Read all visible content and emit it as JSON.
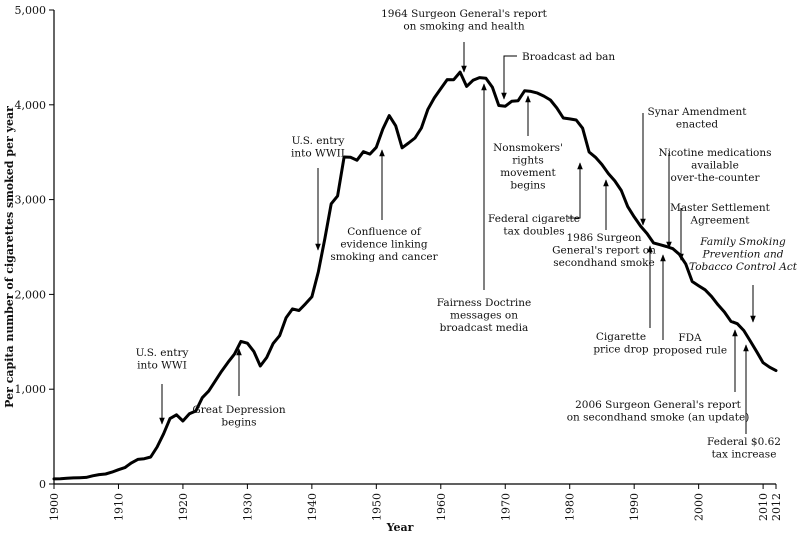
{
  "chart_data": {
    "type": "line",
    "title": "",
    "xlabel": "Year",
    "ylabel": "Per capita number of cigarettes smoked per year",
    "xlim": [
      1900,
      2012
    ],
    "ylim": [
      0,
      5000
    ],
    "x_ticks": [
      "1900",
      "1910",
      "1920",
      "1930",
      "1940",
      "1950",
      "1960",
      "1970",
      "1980",
      "1990",
      "2000",
      "2010",
      "2012"
    ],
    "y_ticks": [
      "0",
      "1,000",
      "2,000",
      "3,000",
      "4,000",
      "5,000"
    ],
    "grid": false,
    "series": [
      {
        "name": "",
        "x": [
          1900,
          1901,
          1902,
          1903,
          1904,
          1905,
          1906,
          1907,
          1908,
          1909,
          1910,
          1911,
          1912,
          1913,
          1914,
          1915,
          1916,
          1917,
          1918,
          1919,
          1920,
          1921,
          1922,
          1923,
          1924,
          1925,
          1926,
          1927,
          1928,
          1929,
          1930,
          1931,
          1932,
          1933,
          1934,
          1935,
          1936,
          1937,
          1938,
          1939,
          1940,
          1941,
          1942,
          1943,
          1944,
          1945,
          1946,
          1947,
          1948,
          1949,
          1950,
          1951,
          1952,
          1953,
          1954,
          1955,
          1956,
          1957,
          1958,
          1959,
          1960,
          1961,
          1962,
          1963,
          1964,
          1965,
          1966,
          1967,
          1968,
          1969,
          1970,
          1971,
          1972,
          1973,
          1974,
          1975,
          1976,
          1977,
          1978,
          1979,
          1980,
          1981,
          1982,
          1983,
          1984,
          1985,
          1986,
          1987,
          1988,
          1989,
          1990,
          1991,
          1992,
          1993,
          1994,
          1995,
          1996,
          1997,
          1998,
          1999,
          2000,
          2001,
          2002,
          2003,
          2004,
          2005,
          2006,
          2007,
          2008,
          2009,
          2010,
          2011,
          2012
        ],
        "y": [
          54,
          55,
          60,
          64,
          66,
          70,
          86,
          99,
          105,
          125,
          151,
          173,
          223,
          260,
          267,
          285,
          390,
          530,
          690,
          730,
          665,
          740,
          770,
          910,
          980,
          1085,
          1190,
          1285,
          1370,
          1504,
          1485,
          1399,
          1245,
          1334,
          1483,
          1564,
          1754,
          1847,
          1830,
          1900,
          1976,
          2236,
          2585,
          2956,
          3039,
          3449,
          3446,
          3416,
          3505,
          3480,
          3552,
          3744,
          3886,
          3778,
          3546,
          3597,
          3650,
          3755,
          3953,
          4073,
          4171,
          4266,
          4265,
          4345,
          4194,
          4258,
          4287,
          4280,
          4186,
          3993,
          3985,
          4037,
          4043,
          4148,
          4141,
          4123,
          4092,
          4051,
          3967,
          3861,
          3851,
          3840,
          3753,
          3502,
          3446,
          3370,
          3274,
          3197,
          3096,
          2926,
          2817,
          2720,
          2641,
          2543,
          2524,
          2505,
          2482,
          2423,
          2320,
          2136,
          2092,
          2049,
          1979,
          1890,
          1814,
          1716,
          1691,
          1619,
          1509,
          1396,
          1280,
          1232,
          1196
        ]
      }
    ],
    "annotations": [
      {
        "lines": [
          "U.S. entry",
          "into WWI"
        ],
        "year": 1917
      },
      {
        "lines": [
          "Great Depression",
          "begins"
        ],
        "year": 1929
      },
      {
        "lines": [
          "U.S. entry",
          "into WWII"
        ],
        "year": 1941
      },
      {
        "lines": [
          "Confluence of",
          "evidence linking",
          "smoking and cancer"
        ],
        "year": 1951
      },
      {
        "lines": [
          "1964 Surgeon General's report",
          "on smoking and health"
        ],
        "year": 1964
      },
      {
        "lines": [
          "Fairness Doctrine",
          "messages on",
          "broadcast media"
        ],
        "year": 1967
      },
      {
        "lines": [
          "Broadcast ad ban"
        ],
        "year": 1971
      },
      {
        "lines": [
          "Nonsmokers'",
          "rights",
          "movement",
          "begins"
        ],
        "year": 1974
      },
      {
        "lines": [
          "Federal cigarette",
          "tax doubles"
        ],
        "year": 1983
      },
      {
        "lines": [
          "1986 Surgeon",
          "General's report on",
          "secondhand smoke"
        ],
        "year": 1986
      },
      {
        "lines": [
          "Cigarette",
          "price drop"
        ],
        "year": 1993
      },
      {
        "lines": [
          "Synar Amendment",
          "enacted"
        ],
        "year": 1992
      },
      {
        "lines": [
          "FDA",
          "proposed rule"
        ],
        "year": 1995
      },
      {
        "lines": [
          "Nicotine medications",
          "available",
          "over-the-counter"
        ],
        "year": 1996
      },
      {
        "lines": [
          "Master Settlement",
          "Agreement"
        ],
        "year": 1998
      },
      {
        "lines": [
          "Family Smoking",
          "Prevention and",
          "Tobacco Control Act"
        ],
        "year": 2009,
        "italic": true
      },
      {
        "lines": [
          "2006 Surgeon General's report",
          "on secondhand smoke (an update)"
        ],
        "year": 2006
      },
      {
        "lines": [
          "Federal $0.62",
          "tax increase"
        ],
        "year": 2009
      }
    ]
  }
}
